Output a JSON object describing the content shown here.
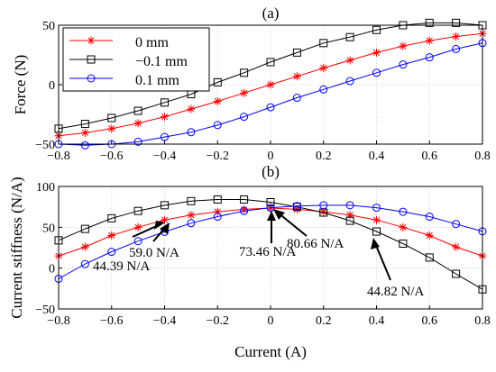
{
  "colors": {
    "series_0mm": "#ff0000",
    "series_m01mm": "#000000",
    "series_01mm": "#0000ff",
    "grid": "#c8c8c8",
    "axes": "#000000",
    "background": "#ffffff"
  },
  "chart_data": [
    {
      "type": "line",
      "title": "(a)",
      "xlabel": "",
      "ylabel": "Force (N)",
      "xlim": [
        -0.8,
        0.8
      ],
      "ylim": [
        -50,
        50
      ],
      "xticks": [
        -0.8,
        -0.6,
        -0.4,
        -0.2,
        0,
        0.2,
        0.4,
        0.6,
        0.8
      ],
      "xtick_labels": [
        "−0.8",
        "−0.6",
        "−0.4",
        "−0.2",
        "0",
        "0.2",
        "0.4",
        "0.6",
        "0.8"
      ],
      "yticks": [
        -50,
        0,
        50
      ],
      "ytick_labels": [
        "−50",
        "0",
        "50"
      ],
      "grid": true,
      "legend": {
        "placement": "top-left",
        "box": true
      },
      "series": [
        {
          "name": "0 mm",
          "color_key": "series_0mm",
          "marker": "asterisk",
          "x": [
            -0.8,
            -0.7,
            -0.6,
            -0.5,
            -0.4,
            -0.3,
            -0.2,
            -0.1,
            0,
            0.1,
            0.2,
            0.3,
            0.4,
            0.5,
            0.6,
            0.7,
            0.8
          ],
          "y": [
            -43,
            -40.5,
            -37,
            -32.5,
            -27,
            -20.5,
            -14,
            -7,
            0,
            7,
            14,
            20.5,
            27,
            32.5,
            37,
            40.5,
            43
          ]
        },
        {
          "name": "−0.1 mm",
          "color_key": "series_m01mm",
          "marker": "square",
          "x": [
            -0.8,
            -0.7,
            -0.6,
            -0.5,
            -0.4,
            -0.3,
            -0.2,
            -0.1,
            0,
            0.1,
            0.2,
            0.3,
            0.4,
            0.5,
            0.6,
            0.7,
            0.8
          ],
          "y": [
            -37,
            -33,
            -28,
            -22,
            -15,
            -8,
            2,
            10,
            19,
            27,
            35,
            40,
            46,
            50,
            52,
            52,
            50
          ]
        },
        {
          "name": "0.1 mm",
          "color_key": "series_01mm",
          "marker": "circle",
          "x": [
            -0.8,
            -0.7,
            -0.6,
            -0.5,
            -0.4,
            -0.3,
            -0.2,
            -0.1,
            0,
            0.1,
            0.2,
            0.3,
            0.4,
            0.5,
            0.6,
            0.7,
            0.8
          ],
          "y": [
            -50,
            -51,
            -50,
            -48,
            -44,
            -40,
            -34,
            -27,
            -19,
            -11,
            -4,
            3,
            10,
            17,
            23,
            30,
            35
          ]
        }
      ]
    },
    {
      "type": "line",
      "title": "(b)",
      "xlabel": "Current (A)",
      "ylabel": "Current stiffness (N/A)",
      "xlim": [
        -0.8,
        0.8
      ],
      "ylim": [
        -50,
        100
      ],
      "xticks": [
        -0.8,
        -0.6,
        -0.4,
        -0.2,
        0,
        0.2,
        0.4,
        0.6,
        0.8
      ],
      "xtick_labels": [
        "−0.8",
        "−0.6",
        "−0.4",
        "−0.2",
        "0",
        "0.2",
        "0.4",
        "0.6",
        "0.8"
      ],
      "yticks": [
        -50,
        0,
        50,
        100
      ],
      "ytick_labels": [
        "−50",
        "0",
        "50",
        "100"
      ],
      "grid": true,
      "series": [
        {
          "color_key": "series_0mm",
          "marker": "asterisk",
          "x": [
            -0.8,
            -0.7,
            -0.6,
            -0.5,
            -0.4,
            -0.3,
            -0.2,
            -0.1,
            0,
            0.1,
            0.2,
            0.3,
            0.4,
            0.5,
            0.6,
            0.7,
            0.8
          ],
          "y": [
            15,
            26,
            40,
            50,
            59,
            65,
            69,
            72,
            73.5,
            72,
            69,
            65,
            59,
            50,
            40,
            26,
            15
          ]
        },
        {
          "color_key": "series_m01mm",
          "marker": "square",
          "x": [
            -0.8,
            -0.7,
            -0.6,
            -0.5,
            -0.4,
            -0.3,
            -0.2,
            -0.1,
            0,
            0.1,
            0.2,
            0.3,
            0.4,
            0.5,
            0.6,
            0.7,
            0.8
          ],
          "y": [
            34,
            48,
            61,
            70,
            77,
            82,
            84,
            84,
            80.7,
            75,
            68,
            58,
            44.8,
            30,
            13,
            -7,
            -26
          ]
        },
        {
          "color_key": "series_01mm",
          "marker": "circle",
          "x": [
            -0.8,
            -0.7,
            -0.6,
            -0.5,
            -0.4,
            -0.3,
            -0.2,
            -0.1,
            0,
            0.1,
            0.2,
            0.3,
            0.4,
            0.5,
            0.6,
            0.7,
            0.8
          ],
          "y": [
            -13,
            5,
            20,
            33,
            44.4,
            55,
            63,
            70,
            74,
            76,
            77,
            77,
            74,
            69,
            63,
            54,
            45
          ]
        }
      ],
      "annotations": [
        {
          "text": "59.0 N/A",
          "x": -0.4,
          "y": 59
        },
        {
          "text": "44.39 N/A",
          "x": -0.4,
          "y": 44.4
        },
        {
          "text": "73.46 N/A",
          "x": 0,
          "y": 73.5
        },
        {
          "text": "80.66 N/A",
          "x": 0,
          "y": 80.7
        },
        {
          "text": "44.82 N/A",
          "x": 0.4,
          "y": 44.8
        }
      ]
    }
  ]
}
